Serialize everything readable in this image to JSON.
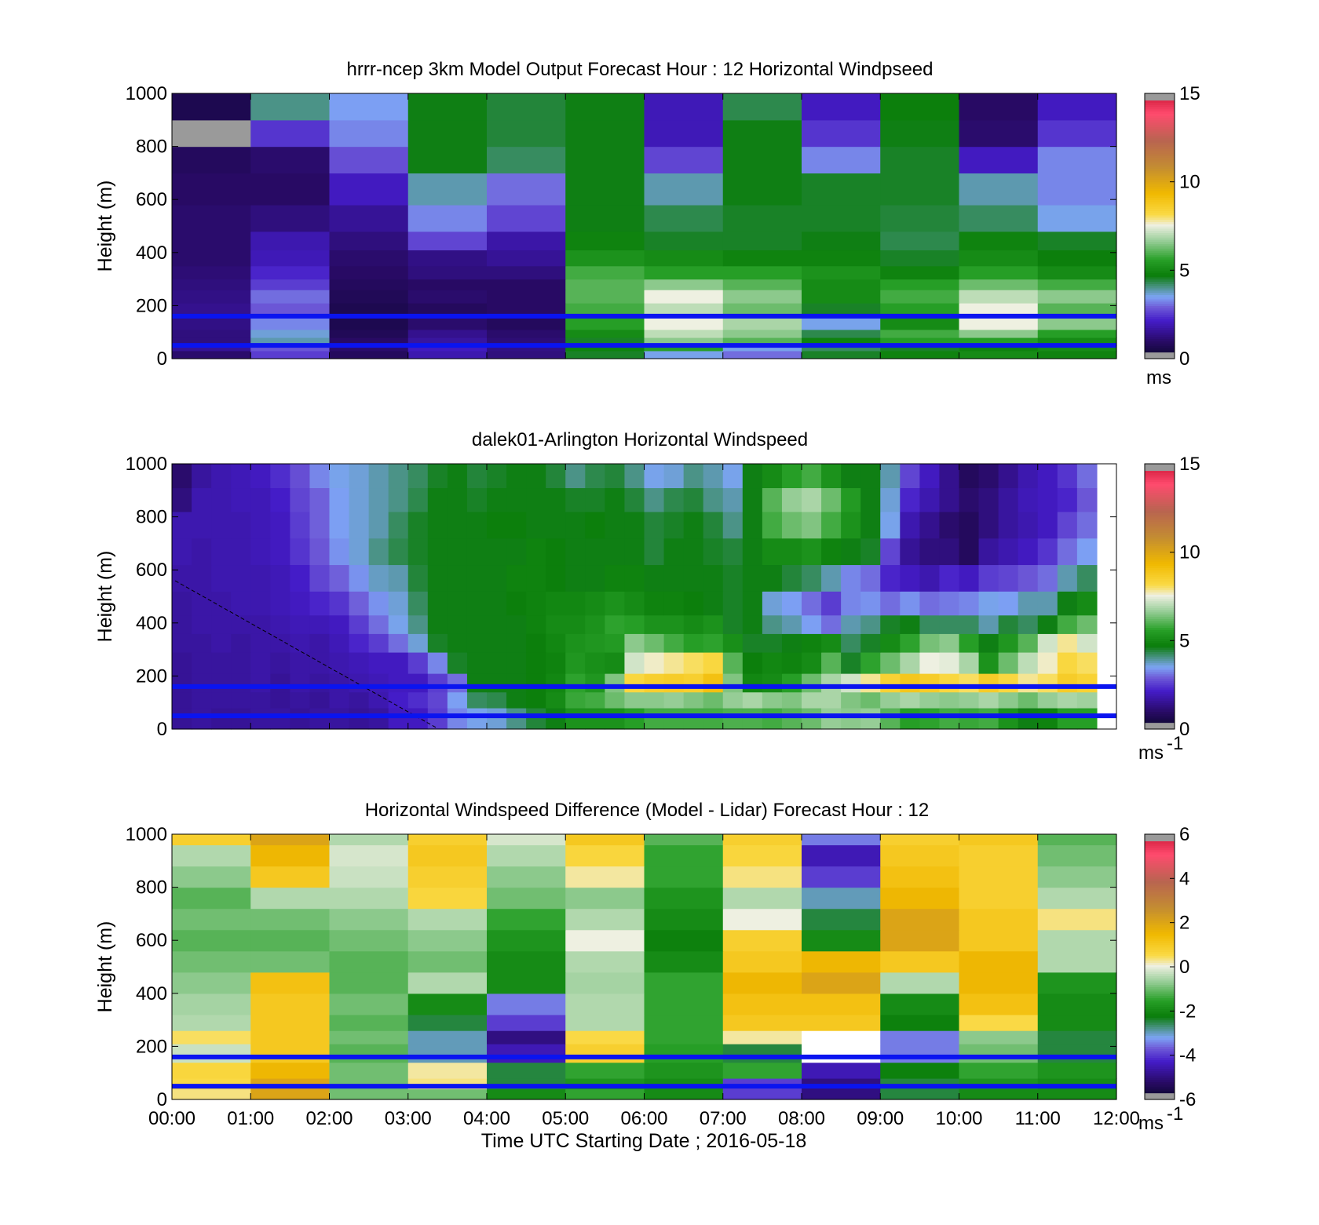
{
  "chart_data": [
    {
      "type": "heatmap",
      "id": "model",
      "title": "hrrr-ncep 3km Model Output   Forecast Hour : 12 Horizontal Windpseed",
      "ylabel": "Height (m)",
      "xlabel": "",
      "ylim": [
        0,
        1000
      ],
      "yticks": [
        "0",
        "200",
        "400",
        "600",
        "800",
        "1000"
      ],
      "xlim": [
        0,
        12
      ],
      "x_ticks_labelled": false,
      "colorbar": {
        "range": [
          0,
          15
        ],
        "ticks": [
          "0",
          "5",
          "10",
          "15"
        ],
        "unit_text": "ms",
        "unit_superscript": ""
      },
      "reference_lines_m": [
        50,
        160
      ],
      "columns_hours": [
        0,
        1,
        2,
        3,
        4,
        5,
        6,
        7,
        8,
        9,
        10,
        11,
        12
      ],
      "heights_m": [
        0,
        30,
        50,
        80,
        110,
        160,
        210,
        260,
        300,
        350,
        410,
        480,
        580,
        700,
        800,
        900,
        1000
      ],
      "values": [
        [
          1.0,
          2.5,
          0.8,
          1.8,
          1.2,
          4.5,
          3.5,
          3.0,
          4.5,
          4.8,
          5.0,
          4.8
        ],
        [
          1.5,
          2.8,
          1.0,
          2.0,
          1.3,
          4.8,
          5.5,
          3.5,
          4.2,
          4.5,
          4.8,
          5.0
        ],
        [
          1.2,
          3.8,
          0.9,
          1.6,
          1.1,
          4.5,
          6.5,
          6.0,
          4.8,
          5.5,
          5.5,
          5.0
        ],
        [
          1.2,
          3.6,
          0.7,
          1.4,
          1.0,
          5.0,
          7.0,
          6.5,
          4.3,
          5.8,
          6.5,
          5.5
        ],
        [
          1.3,
          3.2,
          0.6,
          1.0,
          0.8,
          5.5,
          7.5,
          6.8,
          3.5,
          5.0,
          7.5,
          6.5
        ],
        [
          1.4,
          2.8,
          0.6,
          0.8,
          0.9,
          5.8,
          7.0,
          6.2,
          4.5,
          5.5,
          7.5,
          6.0
        ],
        [
          1.3,
          3.0,
          0.7,
          1.0,
          0.9,
          6.0,
          7.5,
          6.5,
          5.0,
          5.8,
          7.0,
          6.5
        ],
        [
          1.2,
          2.5,
          0.8,
          0.9,
          0.9,
          6.0,
          6.5,
          6.0,
          5.0,
          5.5,
          6.2,
          5.8
        ],
        [
          1.1,
          2.2,
          0.9,
          1.2,
          1.2,
          5.8,
          5.5,
          5.5,
          5.2,
          4.8,
          5.5,
          5.0
        ],
        [
          1.0,
          1.9,
          1.0,
          1.3,
          1.5,
          5.2,
          5.0,
          4.8,
          4.8,
          4.5,
          5.0,
          4.7
        ],
        [
          1.0,
          1.8,
          1.2,
          2.6,
          1.7,
          4.8,
          4.5,
          4.5,
          4.6,
          4.3,
          4.8,
          4.5
        ],
        [
          1.0,
          1.2,
          1.5,
          3.2,
          2.6,
          4.6,
          4.3,
          4.5,
          4.5,
          4.4,
          4.2,
          3.5
        ],
        [
          0.9,
          0.9,
          2.0,
          3.8,
          3.0,
          4.6,
          3.8,
          4.6,
          4.5,
          4.5,
          3.8,
          3.2
        ],
        [
          0.8,
          1.0,
          2.7,
          4.6,
          4.2,
          4.6,
          2.6,
          4.6,
          3.2,
          4.5,
          2.0,
          3.2
        ],
        [
          null,
          2.4,
          3.2,
          4.6,
          4.4,
          4.6,
          1.9,
          4.6,
          2.4,
          4.6,
          1.0,
          2.4
        ],
        [
          0.6,
          4.0,
          3.4,
          4.6,
          4.4,
          4.6,
          1.9,
          4.3,
          2.0,
          4.7,
          0.9,
          2.0
        ],
        [
          1.0,
          4.6,
          3.4,
          4.6,
          4.4,
          4.6,
          2.4,
          4.0,
          1.9,
          3.8,
          1.3,
          2.0
        ]
      ]
    },
    {
      "type": "heatmap",
      "id": "lidar",
      "title": "dalek01-Arlington  Horizontal Windspeed",
      "ylabel": "Height (m)",
      "xlabel": "",
      "ylim": [
        0,
        1000
      ],
      "yticks": [
        "0",
        "200",
        "400",
        "600",
        "800",
        "1000"
      ],
      "xlim": [
        0,
        12
      ],
      "x_ticks_labelled": false,
      "colorbar": {
        "range": [
          0,
          15
        ],
        "ticks": [
          "0",
          "5",
          "10",
          "15"
        ],
        "unit_text": "ms",
        "unit_superscript": "-1"
      },
      "reference_lines_m": [
        50,
        160
      ],
      "column_hours_step": 0.25,
      "data_xmax_hours": 11.85,
      "height_bins_m": [
        0,
        80,
        140,
        210,
        290,
        360,
        430,
        520,
        620,
        720,
        820,
        910,
        1000
      ],
      "values": [
        [
          1.5,
          1.6,
          1.5,
          1.5,
          1.6,
          1.6,
          1.5,
          1.6,
          1.6,
          1.5,
          1.6,
          2.0,
          2.0,
          2.5,
          3.2,
          3.5,
          3.6,
          4.0,
          4.4,
          4.6,
          5.2,
          5.2,
          5.2,
          5.5,
          5.8,
          5.8,
          5.8,
          5.8,
          5.9,
          5.9,
          5.8,
          6.0,
          6.2,
          6.6,
          6.5,
          6.6,
          6.0,
          5.5,
          5.6,
          5.8,
          5.7,
          5.8,
          5.2,
          4.6,
          4.8,
          5.5,
          5.5
        ],
        [
          1.5,
          1.6,
          1.6,
          1.6,
          1.6,
          1.5,
          1.6,
          1.5,
          1.7,
          1.6,
          1.8,
          2.1,
          2.3,
          2.6,
          3.4,
          4.2,
          4.3,
          4.6,
          4.7,
          5.0,
          5.7,
          5.8,
          6.2,
          6.5,
          6.5,
          6.6,
          6.4,
          6.2,
          6.6,
          6.8,
          6.5,
          6.4,
          6.8,
          6.8,
          6.4,
          6.2,
          6.6,
          6.8,
          6.6,
          6.5,
          6.6,
          6.8,
          6.5,
          6.2,
          6.6,
          6.8,
          6.7
        ],
        [
          1.5,
          1.6,
          1.6,
          1.6,
          1.7,
          1.5,
          1.7,
          1.6,
          1.7,
          1.8,
          1.9,
          2.0,
          2.0,
          2.5,
          3.0,
          4.6,
          4.6,
          4.6,
          4.7,
          4.9,
          5.6,
          5.3,
          6.4,
          8.2,
          8.5,
          8.6,
          8.5,
          9.0,
          6.4,
          4.9,
          5.0,
          5.5,
          6.2,
          6.8,
          7.2,
          7.8,
          8.4,
          8.8,
          8.6,
          8.2,
          8.0,
          8.6,
          8.2,
          7.8,
          8.0,
          8.6,
          8.4
        ],
        [
          1.5,
          1.6,
          1.6,
          1.6,
          1.7,
          1.6,
          1.7,
          1.7,
          1.8,
          1.9,
          2.0,
          2.0,
          2.5,
          3.2,
          4.5,
          4.6,
          4.6,
          4.6,
          4.7,
          4.8,
          5.3,
          5.1,
          5.0,
          7.2,
          7.6,
          7.8,
          8.0,
          8.2,
          6.0,
          4.7,
          4.9,
          4.8,
          5.0,
          6.0,
          4.5,
          5.6,
          6.2,
          6.8,
          7.5,
          7.4,
          6.8,
          5.2,
          6.2,
          7.0,
          7.6,
          8.2,
          8.0
        ],
        [
          1.6,
          1.6,
          1.7,
          1.6,
          1.7,
          1.7,
          1.8,
          1.7,
          1.9,
          2.2,
          2.5,
          3.0,
          3.6,
          4.5,
          4.6,
          4.6,
          4.6,
          4.6,
          4.7,
          4.9,
          5.2,
          5.3,
          5.4,
          6.5,
          6.2,
          5.8,
          5.5,
          5.6,
          5.1,
          4.5,
          4.5,
          4.6,
          4.8,
          5.0,
          4.2,
          4.5,
          5.0,
          5.6,
          6.3,
          6.5,
          5.5,
          4.6,
          5.3,
          6.0,
          7.2,
          7.8,
          7.2
        ],
        [
          1.6,
          1.7,
          1.7,
          1.7,
          1.7,
          1.8,
          1.9,
          1.9,
          2.0,
          2.5,
          3.0,
          3.5,
          4.0,
          4.6,
          4.6,
          4.6,
          4.6,
          4.6,
          4.8,
          5.0,
          5.0,
          5.2,
          5.6,
          5.5,
          5.2,
          5.2,
          5.0,
          5.2,
          4.5,
          4.6,
          4.0,
          3.8,
          3.4,
          3.0,
          3.8,
          4.0,
          4.5,
          4.6,
          4.2,
          4.2,
          4.2,
          3.8,
          4.4,
          4.2,
          4.6,
          5.8,
          6.2
        ],
        [
          1.6,
          1.7,
          1.7,
          1.8,
          1.8,
          1.9,
          2.0,
          2.2,
          2.4,
          2.9,
          3.3,
          3.6,
          4.2,
          4.6,
          4.6,
          4.6,
          4.6,
          4.7,
          4.8,
          4.9,
          4.9,
          5.0,
          5.2,
          5.0,
          4.8,
          4.8,
          4.7,
          4.6,
          4.5,
          4.6,
          3.6,
          3.4,
          3.0,
          2.5,
          3.2,
          3.3,
          3.0,
          3.3,
          3.0,
          3.1,
          3.2,
          3.5,
          3.4,
          3.8,
          3.8,
          4.6,
          5.0
        ],
        [
          1.7,
          1.7,
          1.8,
          1.8,
          1.8,
          1.9,
          2.1,
          2.6,
          2.9,
          3.3,
          3.7,
          3.8,
          4.4,
          4.6,
          4.6,
          4.6,
          4.6,
          4.8,
          4.8,
          4.7,
          4.6,
          4.6,
          4.8,
          4.8,
          4.6,
          4.6,
          4.6,
          4.6,
          4.5,
          4.6,
          4.6,
          4.4,
          4.2,
          3.8,
          3.2,
          3.0,
          2.2,
          2.0,
          1.8,
          2.2,
          2.0,
          2.5,
          2.6,
          2.8,
          3.0,
          3.8,
          4.2
        ],
        [
          1.8,
          1.7,
          1.8,
          1.8,
          1.9,
          2.0,
          2.4,
          2.8,
          3.3,
          3.6,
          4.0,
          4.3,
          4.5,
          4.6,
          4.6,
          4.6,
          4.6,
          4.6,
          4.8,
          4.7,
          4.6,
          4.6,
          4.6,
          4.6,
          4.4,
          4.6,
          4.6,
          4.5,
          4.4,
          4.6,
          5.0,
          5.0,
          5.2,
          4.8,
          4.6,
          4.5,
          2.6,
          1.5,
          1.2,
          1.2,
          0.8,
          1.6,
          1.8,
          2.0,
          2.4,
          3.0,
          3.4
        ],
        [
          1.8,
          1.8,
          1.8,
          1.8,
          1.9,
          2.0,
          2.5,
          2.9,
          3.4,
          3.6,
          3.8,
          4.2,
          4.5,
          4.6,
          4.6,
          4.6,
          4.7,
          4.7,
          4.6,
          4.6,
          4.6,
          4.7,
          4.6,
          4.6,
          4.4,
          4.5,
          4.6,
          4.4,
          4.0,
          4.6,
          5.8,
          6.2,
          6.4,
          5.8,
          5.2,
          4.6,
          3.5,
          1.8,
          1.4,
          1.0,
          0.8,
          1.2,
          1.6,
          1.8,
          2.0,
          2.6,
          3.0
        ],
        [
          1.2,
          1.8,
          1.8,
          1.9,
          1.9,
          2.1,
          2.6,
          2.9,
          3.4,
          3.6,
          3.8,
          4.0,
          4.3,
          4.6,
          4.6,
          4.5,
          4.6,
          4.6,
          4.6,
          4.6,
          4.5,
          4.5,
          4.6,
          4.4,
          4.0,
          4.3,
          4.4,
          4.0,
          3.8,
          4.6,
          6.0,
          6.6,
          6.8,
          6.2,
          5.4,
          4.6,
          3.6,
          2.2,
          1.8,
          1.4,
          1.0,
          1.2,
          1.6,
          1.9,
          2.0,
          2.2,
          2.8
        ],
        [
          1.0,
          1.6,
          1.8,
          1.9,
          2.0,
          2.3,
          2.7,
          3.2,
          3.5,
          3.6,
          3.8,
          4.0,
          4.2,
          4.5,
          4.6,
          4.4,
          4.5,
          4.6,
          4.6,
          4.4,
          4.0,
          4.3,
          4.4,
          4.0,
          3.5,
          3.6,
          4.0,
          3.8,
          3.5,
          4.6,
          5.0,
          5.5,
          5.8,
          5.2,
          4.6,
          4.6,
          3.8,
          2.6,
          2.0,
          1.4,
          0.8,
          1.0,
          1.4,
          1.8,
          2.0,
          2.4,
          3.0
        ]
      ],
      "missing_patches_note": "grey cells near top and right indicate missing data"
    },
    {
      "type": "heatmap",
      "id": "difference",
      "title": "Horizontal Windspeed Difference (Model - Lidar) Forecast Hour : 12",
      "ylabel": "Height (m)",
      "xlabel": "Time UTC  Starting Date ; 2016-05-18",
      "ylim": [
        0,
        1000
      ],
      "yticks": [
        "0",
        "200",
        "400",
        "600",
        "800",
        "1000"
      ],
      "xlim": [
        0,
        12
      ],
      "x_ticks_labelled": true,
      "xticks": [
        "00:00",
        "01:00",
        "02:00",
        "03:00",
        "04:00",
        "05:00",
        "06:00",
        "07:00",
        "08:00",
        "09:00",
        "10:00",
        "11:00",
        "12:00"
      ],
      "colorbar": {
        "range": [
          -6,
          6
        ],
        "ticks": [
          "-6",
          "-4",
          "-2",
          "0",
          "2",
          "4",
          "6"
        ],
        "unit_text": "ms",
        "unit_superscript": "-1"
      },
      "reference_lines_m": [
        50,
        160
      ],
      "height_bins_m": [
        0,
        40,
        80,
        140,
        210,
        260,
        320,
        400,
        480,
        560,
        640,
        720,
        800,
        880,
        960,
        1000
      ],
      "values": [
        [
          0.3,
          2.0,
          -1.0,
          -1.0,
          -2.0,
          -1.5,
          -2.0,
          -4.0,
          -5.0,
          -2.5,
          -2.0,
          -2.0
        ],
        [
          0.5,
          2.0,
          -1.0,
          0.3,
          -2.5,
          -1.8,
          -2.0,
          -4.0,
          -5.0,
          -2.5,
          -1.8,
          -2.0
        ],
        [
          0.6,
          1.5,
          -1.0,
          0.2,
          -2.5,
          -1.5,
          -1.8,
          -1.5,
          -4.5,
          -2.2,
          -1.5,
          -1.8
        ],
        [
          -0.3,
          1.0,
          -1.2,
          -3.0,
          -4.5,
          0.8,
          -1.6,
          -2.5,
          null,
          -3.5,
          -1.0,
          -2.5
        ],
        [
          0.4,
          1.0,
          -1.0,
          -3.0,
          -5.0,
          0.5,
          -1.5,
          0.2,
          null,
          -3.5,
          -0.8,
          -2.5
        ],
        [
          -0.5,
          1.0,
          -1.2,
          -2.5,
          -4.0,
          -0.5,
          -1.5,
          1.0,
          1.0,
          -2.2,
          0.5,
          -2.0
        ],
        [
          -0.6,
          1.0,
          -1.0,
          -2.0,
          -3.5,
          -0.5,
          -1.5,
          1.2,
          1.2,
          -2.0,
          1.2,
          -2.0
        ],
        [
          -0.8,
          1.2,
          -1.2,
          -0.5,
          -2.0,
          -0.6,
          -1.5,
          1.5,
          2.0,
          -0.5,
          1.5,
          -1.8
        ],
        [
          -1.0,
          -1.0,
          -1.2,
          -1.0,
          -2.0,
          -0.5,
          -2.0,
          1.0,
          1.5,
          1.0,
          1.5,
          -0.5
        ],
        [
          -1.2,
          -1.2,
          -1.0,
          -0.8,
          -1.8,
          0.0,
          -2.2,
          0.8,
          -2.0,
          2.0,
          1.0,
          -0.5
        ],
        [
          -1.0,
          -1.0,
          -0.8,
          -0.5,
          -1.5,
          -0.5,
          -2.0,
          0.0,
          -2.5,
          2.0,
          1.0,
          0.3
        ],
        [
          -1.2,
          -0.5,
          -0.5,
          0.6,
          -1.0,
          -0.8,
          -1.8,
          -0.5,
          -3.0,
          1.5,
          0.8,
          -0.5
        ],
        [
          -0.8,
          1.0,
          -0.3,
          0.8,
          -0.8,
          0.2,
          -1.5,
          0.3,
          -4.0,
          1.2,
          0.8,
          -0.8
        ],
        [
          -0.5,
          1.5,
          -0.2,
          1.0,
          -0.5,
          0.6,
          -1.5,
          0.6,
          -4.5,
          1.0,
          0.8,
          -1.0
        ],
        [
          0.8,
          2.0,
          -0.5,
          0.8,
          -0.2,
          1.0,
          -1.2,
          0.8,
          -3.5,
          0.8,
          1.0,
          -1.2
        ],
        [
          1.2,
          3.0,
          -0.8,
          1.0,
          0.3,
          1.0,
          -1.0,
          1.0,
          -2.5,
          1.2,
          1.0,
          -1.2
        ]
      ]
    }
  ]
}
